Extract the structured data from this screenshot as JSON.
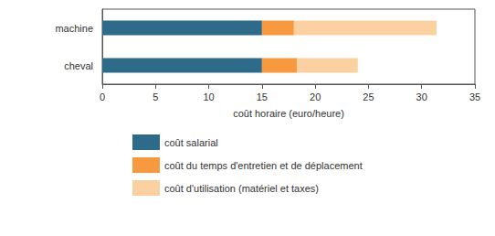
{
  "chart_data": {
    "type": "bar",
    "orientation": "horizontal",
    "stacked": true,
    "xlabel": "coût horaire (euro/heure)",
    "categories": [
      "machine",
      "cheval"
    ],
    "series": [
      {
        "name": "coût salarial",
        "color": "#2e6b88",
        "values": [
          15,
          15
        ]
      },
      {
        "name": "coût du temps d'entretien et de déplacement",
        "color": "#f7993f",
        "values": [
          3,
          3.3
        ]
      },
      {
        "name": "coût d'utilisation (matériel et taxes)",
        "color": "#fcd1a2",
        "values": [
          13.4,
          5.7
        ]
      }
    ],
    "xlim": [
      0,
      35
    ],
    "xticks": [
      0,
      5,
      10,
      15,
      20,
      25,
      30,
      35
    ],
    "grid": false,
    "legend": "bottom"
  }
}
